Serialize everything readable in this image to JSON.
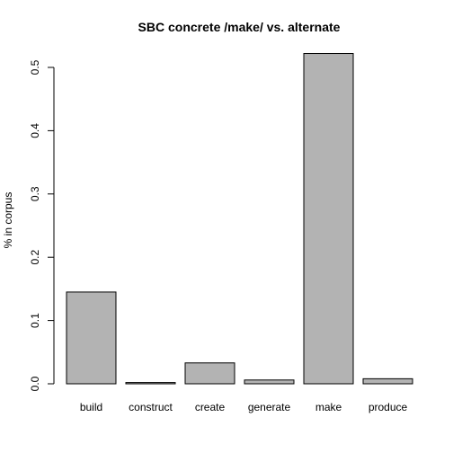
{
  "chart_data": {
    "type": "bar",
    "title": "SBC concrete /make/ vs. alternate",
    "xlabel": "",
    "ylabel": "% in corpus",
    "categories": [
      "build",
      "construct",
      "create",
      "generate",
      "make",
      "produce"
    ],
    "values": [
      0.145,
      0.002,
      0.033,
      0.006,
      0.522,
      0.008
    ],
    "ylim": [
      0,
      0.5
    ],
    "yticks": [
      0.0,
      0.1,
      0.2,
      0.3,
      0.4,
      0.5
    ],
    "ytick_labels": [
      "0.0",
      "0.1",
      "0.2",
      "0.3",
      "0.4",
      "0.5"
    ],
    "grid": false,
    "legend": "none",
    "bar_color": "#b3b3b3"
  }
}
